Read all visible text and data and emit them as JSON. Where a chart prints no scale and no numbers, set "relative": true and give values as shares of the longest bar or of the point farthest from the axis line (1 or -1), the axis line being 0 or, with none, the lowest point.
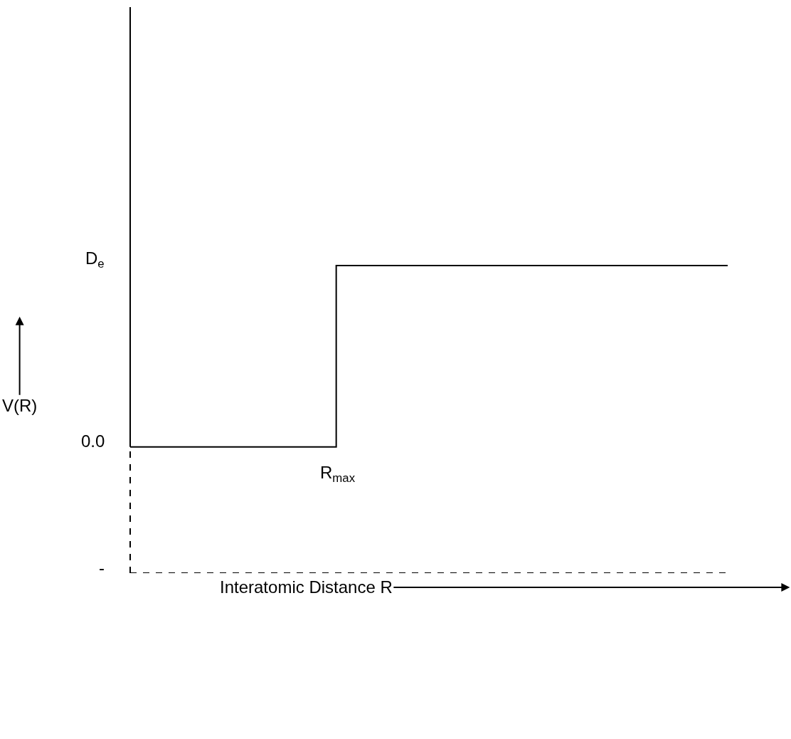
{
  "chart_data": {
    "type": "step",
    "xlabel": "Interatomic Distance R",
    "relative": true,
    "categories": [
      null,
      null,
      null,
      null,
      null,
      null,
      null,
      null,
      null,
      null,
      null,
      null,
      null,
      null,
      null,
      null,
      null,
      null,
      null,
      null,
      null,
      null,
      null,
      null,
      null,
      null,
      null,
      null,
      null,
      null
    ],
    "series": [
      {
        "color": "#000000",
        "values": [
          0.41,
          0.41,
          0.41,
          0.41,
          0.41,
          0.41,
          0.41,
          0.41,
          0.41,
          0.41,
          1,
          1,
          1,
          1,
          1,
          1,
          1,
          1,
          1,
          1,
          1,
          1,
          1,
          1,
          1,
          1,
          1,
          1,
          1,
          1
        ]
      }
    ],
    "annotations": [
      "D$_{e}$",
      "0.0",
      "-",
      "R$_{max}$",
      "V(R)"
    ]
  }
}
